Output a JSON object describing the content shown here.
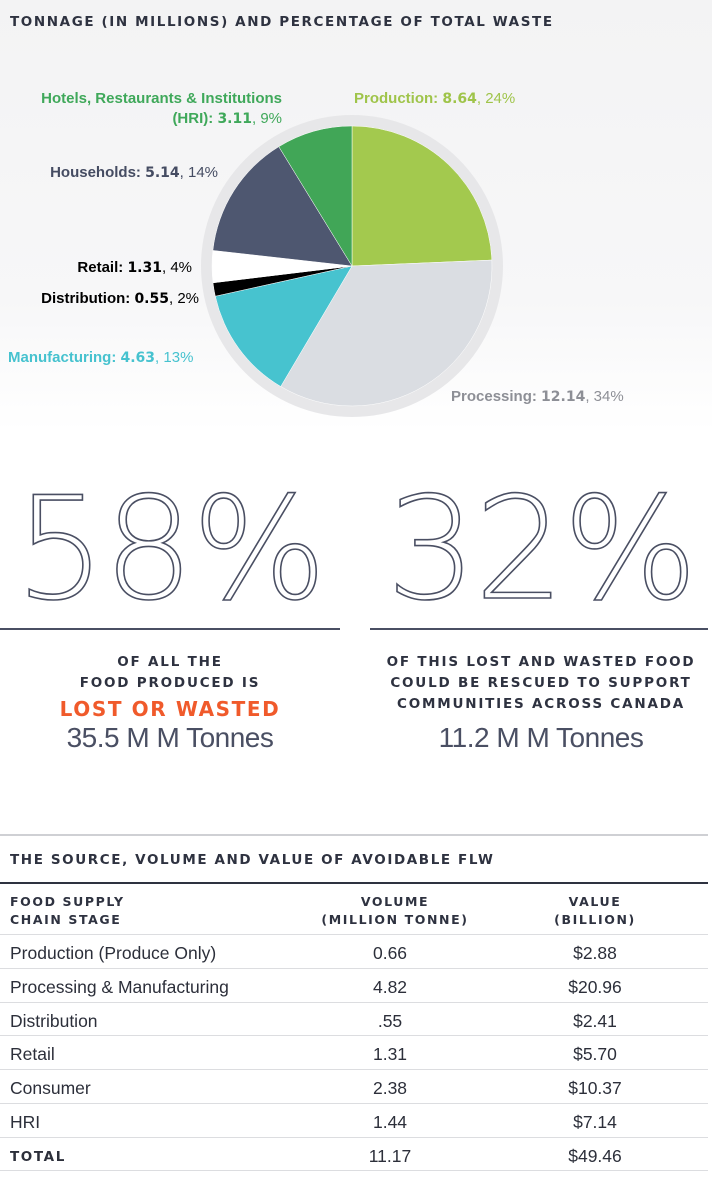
{
  "chart_data": {
    "type": "pie",
    "title": "TONNAGE (IN MILLIONS) AND PERCENTAGE OF TOTAL WASTE",
    "slices": [
      {
        "label": "Production",
        "value": 8.64,
        "percent": "24%",
        "color": "#a3c94e"
      },
      {
        "label": "Processing",
        "value": 12.14,
        "percent": "34%",
        "color": "#dadde2"
      },
      {
        "label": "Manufacturing",
        "value": 4.63,
        "percent": "13%",
        "color": "#47c3cf"
      },
      {
        "label": "Distribution",
        "value": 0.55,
        "percent": "2%",
        "color": "#000000"
      },
      {
        "label": "Retail",
        "value": 1.31,
        "percent": "4%",
        "color": "#ffffff"
      },
      {
        "label": "Households",
        "value": 5.14,
        "percent": "14%",
        "color": "#4e5770"
      },
      {
        "label": "Hotels, Restaurants & Institutions (HRI)",
        "value": 3.11,
        "percent": "9%",
        "color": "#41a657"
      }
    ]
  },
  "labels": {
    "hri_line1": "Hotels, Restaurants & Institutions",
    "hri_line2": "(HRI): ",
    "production": "Production: ",
    "households": "Households: ",
    "retail": "Retail: ",
    "distribution": "Distribution: ",
    "manufacturing": "Manufacturing: ",
    "processing": "Processing: "
  },
  "values": {
    "hri": "3.11",
    "hri_pct": ", 9%",
    "production": "8.64",
    "production_pct": ", 24%",
    "households": "5.14",
    "households_pct": ", 14%",
    "retail": "1.31",
    "retail_pct": ", 4%",
    "distribution": "0.55",
    "distribution_pct": ", 2%",
    "manufacturing": "4.63",
    "manufacturing_pct": ", 13%",
    "processing": "12.14",
    "processing_pct": ", 34%"
  },
  "stats": {
    "left": {
      "big": "58%",
      "line1": "OF ALL THE",
      "line2": "FOOD PRODUCED IS",
      "emphasis": "LOST OR WASTED",
      "tonnes": "35.5 M M Tonnes"
    },
    "right": {
      "big": "32%",
      "line1": "OF THIS LOST AND WASTED FOOD",
      "line2": "COULD BE RESCUED TO SUPPORT",
      "line3": "COMMUNITIES ACROSS CANADA",
      "tonnes": "11.2 M M Tonnes"
    }
  },
  "table": {
    "title": "THE SOURCE, VOLUME AND VALUE OF AVOIDABLE FLW",
    "headers": {
      "col1_line1": "FOOD SUPPLY",
      "col1_line2": "CHAIN STAGE",
      "col2_line1": "VOLUME",
      "col2_line2": "(MILLION TONNE)",
      "col3_line1": "VALUE",
      "col3_line2": "(BILLION)"
    },
    "rows": [
      {
        "stage": "Production (Produce Only)",
        "volume": "0.66",
        "value": "$2.88"
      },
      {
        "stage": "Processing & Manufacturing",
        "volume": "4.82",
        "value": "$20.96"
      },
      {
        "stage": "Distribution",
        "volume": ".55",
        "value": "$2.41"
      },
      {
        "stage": "Retail",
        "volume": "1.31",
        "value": "$5.70"
      },
      {
        "stage": "Consumer",
        "volume": "2.38",
        "value": "$10.37"
      },
      {
        "stage": "HRI",
        "volume": "1.44",
        "value": "$7.14"
      }
    ],
    "total": {
      "stage": "TOTAL",
      "volume": "11.17",
      "value": "$49.46"
    }
  }
}
